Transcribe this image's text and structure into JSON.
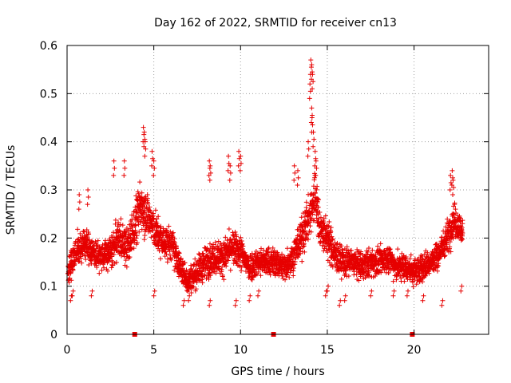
{
  "chart_data": {
    "type": "scatter",
    "title": "Day 162 of 2022, SRMTID for receiver cn13",
    "xlabel": "GPS time / hours",
    "ylabel": "SRMTID / TECUs",
    "xlim": [
      0,
      24.3
    ],
    "ylim": [
      0,
      0.6
    ],
    "xticks": [
      0,
      5,
      10,
      15,
      20
    ],
    "xtick_labels": [
      "0",
      "5",
      "10",
      "15",
      "20"
    ],
    "yticks": [
      0,
      0.1,
      0.2,
      0.3,
      0.4,
      0.5,
      0.6
    ],
    "ytick_labels": [
      "0",
      "0.1",
      "0.2",
      "0.3",
      "0.4",
      "0.5",
      "0.6"
    ],
    "grid": true,
    "marker": "+",
    "color": "#e60000",
    "baseline_markers_x": [
      3.9,
      11.9,
      19.9
    ],
    "envelope": {
      "x": [
        0,
        0.5,
        1,
        1.5,
        2,
        2.5,
        3,
        3.5,
        4,
        4.3,
        4.6,
        5,
        5.5,
        6,
        6.5,
        7,
        7.5,
        8,
        8.5,
        9,
        9.5,
        10,
        10.5,
        11,
        11.5,
        12,
        12.5,
        13,
        13.5,
        14,
        14.3,
        14.6,
        15,
        15.5,
        16,
        16.5,
        17,
        17.5,
        18,
        18.5,
        19,
        19.5,
        20,
        20.5,
        21,
        21.5,
        22,
        22.3,
        22.8
      ],
      "mean": [
        0.13,
        0.17,
        0.19,
        0.17,
        0.16,
        0.17,
        0.2,
        0.18,
        0.24,
        0.27,
        0.25,
        0.22,
        0.19,
        0.19,
        0.14,
        0.11,
        0.13,
        0.15,
        0.16,
        0.16,
        0.18,
        0.17,
        0.14,
        0.15,
        0.15,
        0.15,
        0.14,
        0.16,
        0.2,
        0.25,
        0.29,
        0.22,
        0.2,
        0.16,
        0.15,
        0.15,
        0.14,
        0.15,
        0.15,
        0.16,
        0.14,
        0.14,
        0.13,
        0.14,
        0.15,
        0.17,
        0.21,
        0.24,
        0.21
      ],
      "spread": [
        0.05,
        0.06,
        0.06,
        0.05,
        0.05,
        0.06,
        0.07,
        0.07,
        0.09,
        0.1,
        0.08,
        0.07,
        0.06,
        0.06,
        0.05,
        0.05,
        0.05,
        0.06,
        0.06,
        0.06,
        0.06,
        0.06,
        0.05,
        0.05,
        0.05,
        0.05,
        0.05,
        0.06,
        0.07,
        0.08,
        0.1,
        0.07,
        0.07,
        0.06,
        0.05,
        0.05,
        0.05,
        0.05,
        0.05,
        0.05,
        0.05,
        0.05,
        0.05,
        0.05,
        0.05,
        0.05,
        0.06,
        0.06,
        0.06
      ]
    },
    "peaks": [
      {
        "x": 2.7,
        "y": 0.36
      },
      {
        "x": 3.3,
        "y": 0.36
      },
      {
        "x": 4.4,
        "y": 0.43
      },
      {
        "x": 4.45,
        "y": 0.42
      },
      {
        "x": 4.5,
        "y": 0.4
      },
      {
        "x": 4.9,
        "y": 0.38
      },
      {
        "x": 5.0,
        "y": 0.36
      },
      {
        "x": 8.2,
        "y": 0.36
      },
      {
        "x": 8.25,
        "y": 0.35
      },
      {
        "x": 9.3,
        "y": 0.37
      },
      {
        "x": 9.4,
        "y": 0.35
      },
      {
        "x": 9.9,
        "y": 0.38
      },
      {
        "x": 10.0,
        "y": 0.37
      },
      {
        "x": 13.1,
        "y": 0.35
      },
      {
        "x": 13.3,
        "y": 0.34
      },
      {
        "x": 13.9,
        "y": 0.4
      },
      {
        "x": 14.0,
        "y": 0.52
      },
      {
        "x": 14.05,
        "y": 0.57
      },
      {
        "x": 14.1,
        "y": 0.56
      },
      {
        "x": 14.15,
        "y": 0.54
      },
      {
        "x": 14.1,
        "y": 0.47
      },
      {
        "x": 14.12,
        "y": 0.45
      },
      {
        "x": 14.2,
        "y": 0.42
      },
      {
        "x": 14.3,
        "y": 0.38
      },
      {
        "x": 14.35,
        "y": 0.36
      },
      {
        "x": 22.1,
        "y": 0.33
      },
      {
        "x": 22.2,
        "y": 0.34
      },
      {
        "x": 22.25,
        "y": 0.32
      },
      {
        "x": 1.2,
        "y": 0.3
      },
      {
        "x": 0.7,
        "y": 0.29
      }
    ],
    "troughs": [
      {
        "x": 0.2,
        "y": 0.07
      },
      {
        "x": 0.3,
        "y": 0.08
      },
      {
        "x": 1.4,
        "y": 0.08
      },
      {
        "x": 5.0,
        "y": 0.08
      },
      {
        "x": 6.7,
        "y": 0.06
      },
      {
        "x": 7.0,
        "y": 0.07
      },
      {
        "x": 8.2,
        "y": 0.06
      },
      {
        "x": 9.7,
        "y": 0.06
      },
      {
        "x": 10.5,
        "y": 0.07
      },
      {
        "x": 11.0,
        "y": 0.08
      },
      {
        "x": 14.9,
        "y": 0.08
      },
      {
        "x": 15.0,
        "y": 0.09
      },
      {
        "x": 15.7,
        "y": 0.06
      },
      {
        "x": 16.0,
        "y": 0.07
      },
      {
        "x": 17.5,
        "y": 0.08
      },
      {
        "x": 18.8,
        "y": 0.08
      },
      {
        "x": 19.6,
        "y": 0.08
      },
      {
        "x": 20.5,
        "y": 0.07
      },
      {
        "x": 21.6,
        "y": 0.06
      },
      {
        "x": 22.7,
        "y": 0.09
      }
    ],
    "sample_interval_hours": 0.02,
    "x_end": 22.8
  }
}
